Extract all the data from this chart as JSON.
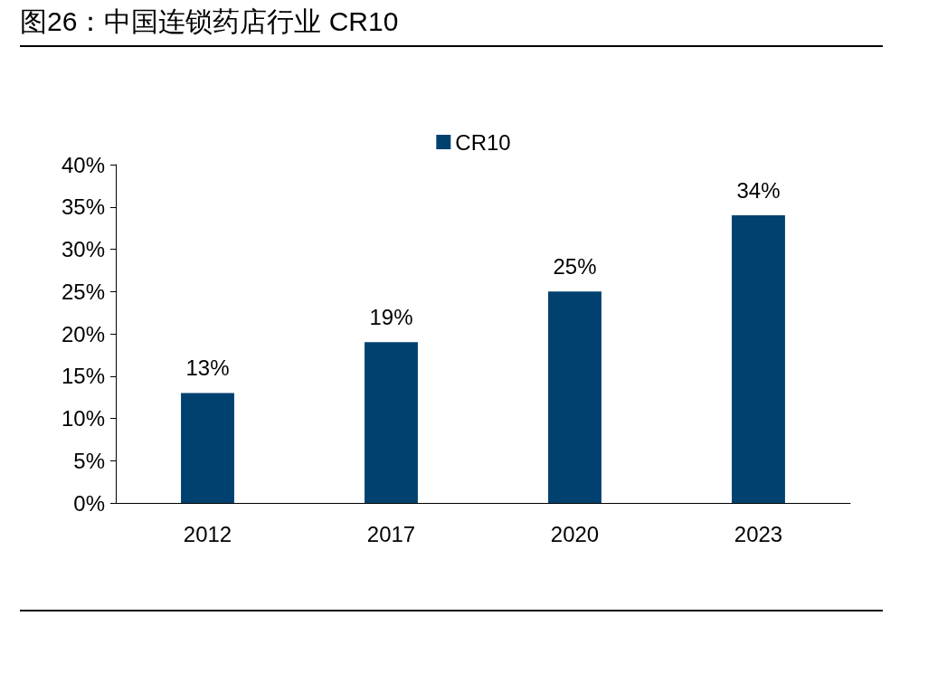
{
  "chart_data": {
    "type": "bar",
    "title": "图26：中国连锁药店行业 CR10",
    "categories": [
      "2012",
      "2017",
      "2020",
      "2023"
    ],
    "series": [
      {
        "name": "CR10",
        "color": "#00416f",
        "values": [
          13,
          19,
          25,
          34
        ],
        "value_labels": [
          "13%",
          "19%",
          "25%",
          "34%"
        ]
      }
    ],
    "ylim": [
      0,
      40
    ],
    "yticks": [
      {
        "value": 0,
        "label": "0%"
      },
      {
        "value": 5,
        "label": "5%"
      },
      {
        "value": 10,
        "label": "10%"
      },
      {
        "value": 15,
        "label": "15%"
      },
      {
        "value": 20,
        "label": "20%"
      },
      {
        "value": 25,
        "label": "25%"
      },
      {
        "value": 30,
        "label": "30%"
      },
      {
        "value": 35,
        "label": "35%"
      },
      {
        "value": 40,
        "label": "40%"
      }
    ],
    "grid": false,
    "legend": "top"
  }
}
